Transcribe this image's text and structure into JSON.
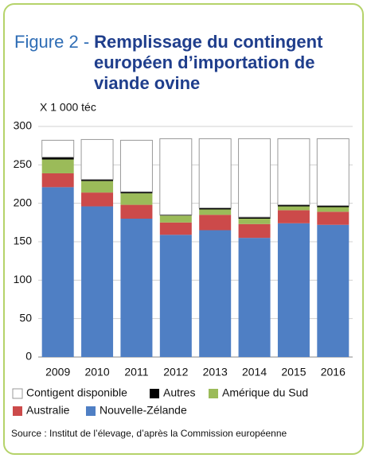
{
  "chart_data": {
    "type": "stacked_bar",
    "figure_label": "Figure 2 -",
    "title": "Remplissage du contingent européen d’importation de viande ovine",
    "unit_label": "X 1 000 téc",
    "source": "Source : Institut de l’élevage, d’après la Commission européenne",
    "categories": [
      "2009",
      "2010",
      "2011",
      "2012",
      "2013",
      "2014",
      "2015",
      "2016"
    ],
    "series": [
      {
        "name": "Contigent disponible",
        "color": "#ffffff",
        "values": [
          22,
          52,
          67,
          99,
          90,
          102,
          86,
          87
        ]
      },
      {
        "name": "Autres",
        "color": "#000000",
        "values": [
          3,
          2,
          2,
          1,
          2,
          2,
          2,
          2
        ]
      },
      {
        "name": "Amérique du Sud",
        "color": "#9bbb59",
        "values": [
          18,
          15,
          15,
          9,
          7,
          7,
          5,
          6
        ]
      },
      {
        "name": "Australie",
        "color": "#cc4a4a",
        "values": [
          18,
          18,
          18,
          16,
          20,
          18,
          17,
          17
        ]
      },
      {
        "name": "Nouvelle-Zélande",
        "color": "#4f7fc4",
        "values": [
          221,
          196,
          180,
          159,
          165,
          155,
          174,
          172
        ]
      }
    ],
    "ylim": [
      0,
      300
    ],
    "yticks": [
      0,
      50,
      100,
      150,
      200,
      250,
      300
    ],
    "grid": true
  }
}
